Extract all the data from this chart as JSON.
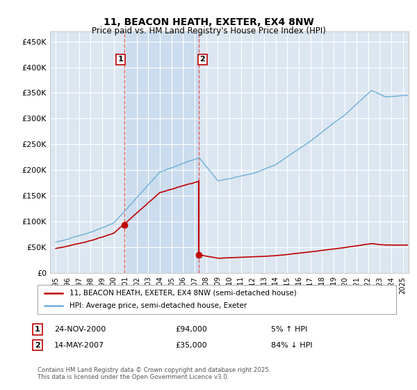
{
  "title": "11, BEACON HEATH, EXETER, EX4 8NW",
  "subtitle": "Price paid vs. HM Land Registry's House Price Index (HPI)",
  "ylim": [
    0,
    470000
  ],
  "yticks": [
    0,
    50000,
    100000,
    150000,
    200000,
    250000,
    300000,
    350000,
    400000,
    450000
  ],
  "xlim_start": 1994.5,
  "xlim_end": 2025.5,
  "xticks": [
    1995,
    1996,
    1997,
    1998,
    1999,
    2000,
    2001,
    2002,
    2003,
    2004,
    2005,
    2006,
    2007,
    2008,
    2009,
    2010,
    2011,
    2012,
    2013,
    2014,
    2015,
    2016,
    2017,
    2018,
    2019,
    2020,
    2021,
    2022,
    2023,
    2024,
    2025
  ],
  "legend_line1": "11, BEACON HEATH, EXETER, EX4 8NW (semi-detached house)",
  "legend_line2": "HPI: Average price, semi-detached house, Exeter",
  "transaction1_date": "24-NOV-2000",
  "transaction1_price": "£94,000",
  "transaction1_hpi": "5% ↑ HPI",
  "transaction2_date": "14-MAY-2007",
  "transaction2_price": "£35,000",
  "transaction2_hpi": "84% ↓ HPI",
  "footnote": "Contains HM Land Registry data © Crown copyright and database right 2025.\nThis data is licensed under the Open Government Licence v3.0.",
  "marker1_x": 2000.9,
  "marker1_y": 94000,
  "marker2_x": 2007.37,
  "marker2_y": 35000,
  "vline1_x": 2000.9,
  "vline2_x": 2007.37,
  "hpi_color": "#6aaed6",
  "price_color": "#c00000",
  "bg_plot_color": "#dce6f1",
  "shade_color": "#c5d8ee",
  "grid_color": "#ffffff",
  "vline_color": "#e06060"
}
